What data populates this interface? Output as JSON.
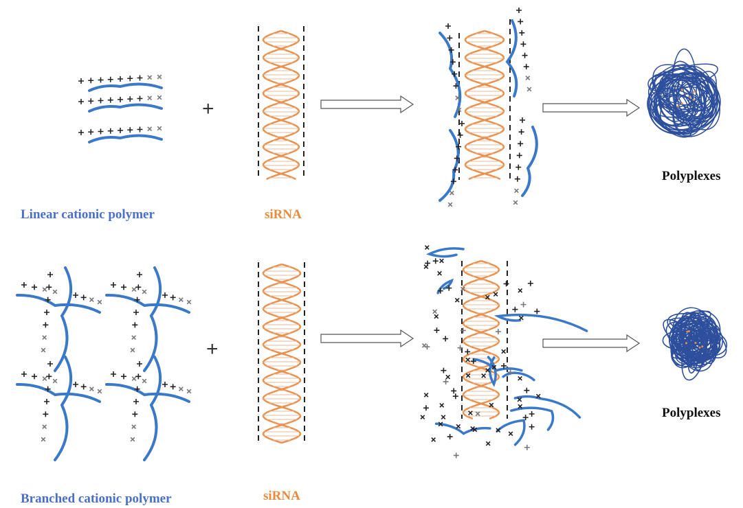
{
  "rows": [
    {
      "polymer": {
        "label": "Linear cationic polymer"
      },
      "operator": "+",
      "sirna": {
        "label": "siRNA"
      },
      "product": {
        "label": "Polyplexes"
      }
    },
    {
      "polymer": {
        "label": "Branched cationic polymer"
      },
      "operator": "+",
      "sirna": {
        "label": "siRNA"
      },
      "product": {
        "label": "Polyplexes"
      }
    }
  ]
}
